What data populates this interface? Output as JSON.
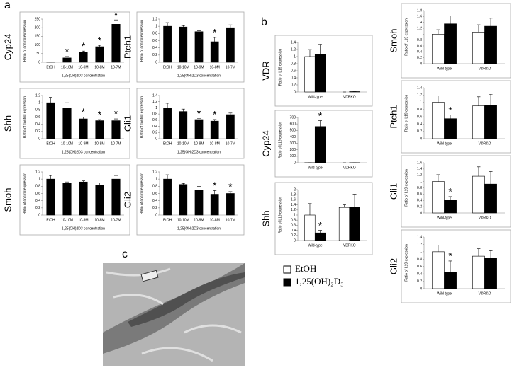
{
  "panels": [
    "a",
    "b",
    "c"
  ],
  "legend": {
    "items": [
      {
        "name": "EtOH",
        "color": "#ffffff"
      },
      {
        "name": "1,25(OH)₂D₃",
        "color": "#000000"
      }
    ]
  },
  "chart_data": [
    {
      "type": "bar",
      "title": "Cyp24",
      "ylabel": "Ratio of control expression",
      "xlabel": "1,25(OH)2D3 concentration",
      "categories": [
        "EtOH",
        "10-10M",
        "10-9M",
        "10-8M",
        "10-7M"
      ],
      "values": [
        1,
        25,
        60,
        90,
        220
      ],
      "errors": [
        0,
        8,
        5,
        8,
        25
      ],
      "markers": [
        null,
        "*",
        "*",
        "*",
        "*"
      ],
      "color": "#000000",
      "ylim": [
        0,
        250
      ],
      "yticks": [
        0,
        50,
        100,
        150,
        200,
        250
      ]
    },
    {
      "type": "bar",
      "title": "Ptch1",
      "ylabel": "Ratio of control expression",
      "xlabel": "1,25(OH)2D3 concentration",
      "categories": [
        "EtOH",
        "10-10M",
        "10-9M",
        "10-8M",
        "10-7M"
      ],
      "values": [
        1,
        0.98,
        0.85,
        0.57,
        0.96
      ],
      "errors": [
        0.1,
        0.04,
        0.03,
        0.12,
        0.08
      ],
      "markers": [
        null,
        null,
        null,
        "*",
        null
      ],
      "color": "#000000",
      "ylim": [
        0,
        1.2
      ],
      "yticks": [
        0,
        0.2,
        0.4,
        0.6,
        0.8,
        1,
        1.2
      ]
    },
    {
      "type": "bar",
      "title": "Shh",
      "ylabel": "Ratio of control expression",
      "xlabel": "1,25(OH)2D3 concentration",
      "categories": [
        "EtOH",
        "10-10M",
        "10-9M",
        "10-8M",
        "10-7M"
      ],
      "values": [
        1,
        0.85,
        0.55,
        0.5,
        0.5
      ],
      "errors": [
        0.15,
        0.15,
        0.05,
        0.03,
        0.05
      ],
      "markers": [
        null,
        null,
        "*",
        "*",
        "*"
      ],
      "color": "#000000",
      "ylim": [
        0,
        1.2
      ],
      "yticks": [
        0,
        0.2,
        0.4,
        0.6,
        0.8,
        1,
        1.2
      ]
    },
    {
      "type": "bar",
      "title": "Gli1",
      "ylabel": "Ratio of control expression",
      "xlabel": "1,25(OH)2D3 concentration",
      "categories": [
        "EtOH",
        "10-10M",
        "10-9M",
        "10-8M",
        "10-7M"
      ],
      "values": [
        1,
        0.88,
        0.62,
        0.57,
        0.78
      ],
      "errors": [
        0.15,
        0.08,
        0.04,
        0.05,
        0.05
      ],
      "markers": [
        null,
        null,
        "*",
        "*",
        null
      ],
      "color": "#000000",
      "ylim": [
        0,
        1.4
      ],
      "yticks": [
        0,
        0.2,
        0.4,
        0.6,
        0.8,
        1,
        1.2,
        1.4
      ]
    },
    {
      "type": "bar",
      "title": "Smoh",
      "ylabel": "Ratio of control expression",
      "xlabel": "1,25(OH)2D3 concentration",
      "categories": [
        "EtOH",
        "10-10M",
        "10-9M",
        "10-8M",
        "10-7M"
      ],
      "values": [
        1,
        0.88,
        0.92,
        0.84,
        1
      ],
      "errors": [
        0.1,
        0.04,
        0.03,
        0.05,
        0.1
      ],
      "markers": [
        null,
        null,
        null,
        null,
        null
      ],
      "color": "#000000",
      "ylim": [
        0,
        1.2
      ],
      "yticks": [
        0,
        0.2,
        0.4,
        0.6,
        0.8,
        1,
        1.2
      ]
    },
    {
      "type": "bar",
      "title": "Gli2",
      "ylabel": "Ratio of control expression",
      "xlabel": "1,25(OH)2D3 concentration",
      "categories": [
        "EtOH",
        "10-10M",
        "10-9M",
        "10-8M",
        "10-7M"
      ],
      "values": [
        1,
        0.85,
        0.7,
        0.58,
        0.6
      ],
      "errors": [
        0.12,
        0.03,
        0.1,
        0.1,
        0.05
      ],
      "markers": [
        null,
        null,
        null,
        "*",
        "*"
      ],
      "color": "#000000",
      "ylim": [
        0,
        1.2
      ],
      "yticks": [
        0,
        0.2,
        0.4,
        0.6,
        0.8,
        1,
        1.2
      ]
    },
    {
      "type": "grouped-bar",
      "title": "VDR",
      "ylabel": "Ratio of L19 expression",
      "categories": [
        "Wild-type",
        "VDRKO"
      ],
      "series": [
        {
          "values": [
            1,
            0
          ],
          "errors": [
            0.2,
            0
          ],
          "markers": [
            null,
            null
          ]
        },
        {
          "values": [
            1.07,
            0.01
          ],
          "errors": [
            0.28,
            0
          ],
          "markers": [
            null,
            null
          ]
        }
      ],
      "ylim": [
        0,
        1.4
      ],
      "yticks": [
        0,
        0.2,
        0.4,
        0.6,
        0.8,
        1,
        1.2,
        1.4
      ]
    },
    {
      "type": "grouped-bar",
      "title": "Cyp24",
      "ylabel": "Ratio of L19 expression",
      "categories": [
        "Wild-type",
        "VDRKO"
      ],
      "series": [
        {
          "values": [
            1,
            0
          ],
          "errors": [
            0,
            0
          ],
          "markers": [
            null,
            null
          ]
        },
        {
          "values": [
            560,
            1
          ],
          "errors": [
            90,
            0
          ],
          "markers": [
            "*",
            null
          ]
        }
      ],
      "ylim": [
        0,
        700
      ],
      "yticks": [
        0,
        100,
        200,
        300,
        400,
        500,
        600,
        700
      ]
    },
    {
      "type": "grouped-bar",
      "title": "Shh",
      "ylabel": "Ratio of L19 expression",
      "categories": [
        "Wild-type",
        "VDRKO"
      ],
      "series": [
        {
          "values": [
            1,
            1.3
          ],
          "errors": [
            0.45,
            0.1
          ],
          "markers": [
            null,
            null
          ]
        },
        {
          "values": [
            0.3,
            1.32
          ],
          "errors": [
            0.1,
            0.5
          ],
          "markers": [
            "*",
            null
          ]
        }
      ],
      "ylim": [
        0,
        2
      ],
      "yticks": [
        0,
        0.2,
        0.4,
        0.6,
        0.8,
        1,
        1.2,
        1.4,
        1.6,
        1.8,
        2
      ]
    },
    {
      "type": "grouped-bar",
      "title": "Smoh",
      "ylabel": "Ratio of L19 expression",
      "categories": [
        "Wild-type",
        "VDRKO"
      ],
      "series": [
        {
          "values": [
            1,
            1.07
          ],
          "errors": [
            0.15,
            0.25
          ],
          "markers": [
            null,
            null
          ]
        },
        {
          "values": [
            1.35,
            1.27
          ],
          "errors": [
            0.27,
            0.27
          ],
          "markers": [
            null,
            null
          ]
        }
      ],
      "ylim": [
        0,
        1.8
      ],
      "yticks": [
        0,
        0.2,
        0.4,
        0.6,
        0.8,
        1,
        1.2,
        1.4,
        1.6,
        1.8
      ]
    },
    {
      "type": "grouped-bar",
      "title": "Ptch1",
      "ylabel": "Ratio of L19 expression",
      "categories": [
        "Wild-type",
        "VDRKO"
      ],
      "series": [
        {
          "values": [
            1,
            0.9
          ],
          "errors": [
            0.18,
            0.25
          ],
          "markers": [
            null,
            null
          ]
        },
        {
          "values": [
            0.55,
            0.92
          ],
          "errors": [
            0.1,
            0.3
          ],
          "markers": [
            "*",
            null
          ]
        }
      ],
      "ylim": [
        0,
        1.4
      ],
      "yticks": [
        0,
        0.2,
        0.4,
        0.6,
        0.8,
        1,
        1.2,
        1.4
      ]
    },
    {
      "type": "grouped-bar",
      "title": "Gli1",
      "ylabel": "Ratio of L19 expression",
      "categories": [
        "Wild-type",
        "VDRKO"
      ],
      "series": [
        {
          "values": [
            1,
            1.17
          ],
          "errors": [
            0.22,
            0.3
          ],
          "markers": [
            null,
            null
          ]
        },
        {
          "values": [
            0.42,
            0.92
          ],
          "errors": [
            0.1,
            0.4
          ],
          "markers": [
            "*",
            null
          ]
        }
      ],
      "ylim": [
        0,
        1.6
      ],
      "yticks": [
        0,
        0.2,
        0.4,
        0.6,
        0.8,
        1,
        1.2,
        1.4,
        1.6
      ]
    },
    {
      "type": "grouped-bar",
      "title": "Gli2",
      "ylabel": "Ratio of L19 expression",
      "categories": [
        "Wild-type",
        "VDRKO"
      ],
      "series": [
        {
          "values": [
            1,
            0.88
          ],
          "errors": [
            0.18,
            0.2
          ],
          "markers": [
            null,
            null
          ]
        },
        {
          "values": [
            0.45,
            0.83
          ],
          "errors": [
            0.3,
            0.2
          ],
          "markers": [
            "*",
            null
          ]
        }
      ],
      "ylim": [
        0,
        1.4
      ],
      "yticks": [
        0,
        0.2,
        0.4,
        0.6,
        0.8,
        1,
        1.2,
        1.4
      ]
    }
  ]
}
